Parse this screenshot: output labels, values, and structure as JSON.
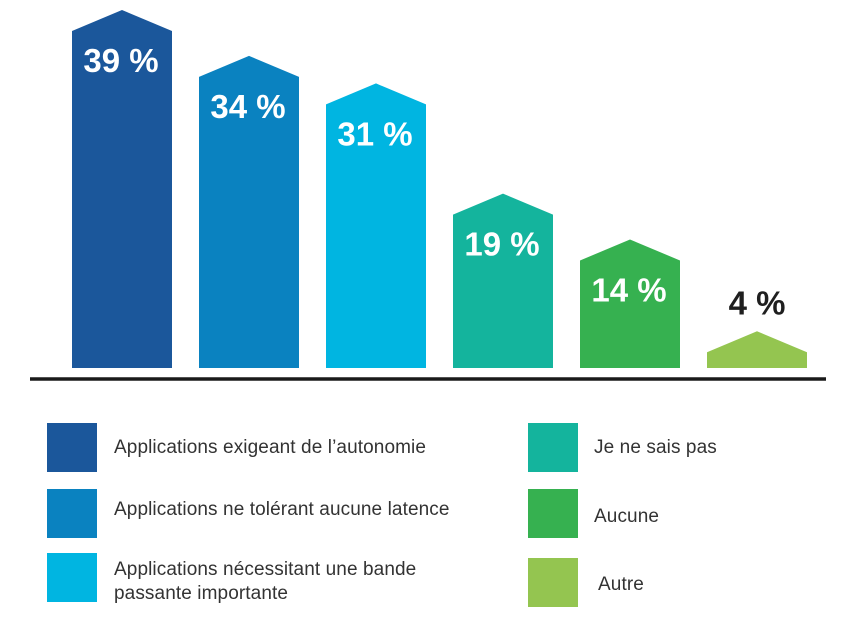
{
  "chart_data": {
    "type": "bar",
    "title": "",
    "xlabel": "",
    "ylabel": "",
    "ylim": [
      0,
      39
    ],
    "categories": [
      "Applications exigeant de l’autonomie",
      "Applications ne tolérant aucune latence",
      "Applications nécessitant une bande passante importante",
      "Je ne sais pas",
      "Aucune",
      "Autre"
    ],
    "values": [
      39,
      34,
      31,
      19,
      14,
      4
    ],
    "data_labels": [
      "39 %",
      "34 %",
      "31 %",
      "19 %",
      "14 %",
      "4 %"
    ],
    "colors": [
      "#1b579b",
      "#0a82c0",
      "#00b5e1",
      "#14b49d",
      "#36b150",
      "#94c550"
    ],
    "legend_position": "bottom",
    "grid": false
  }
}
